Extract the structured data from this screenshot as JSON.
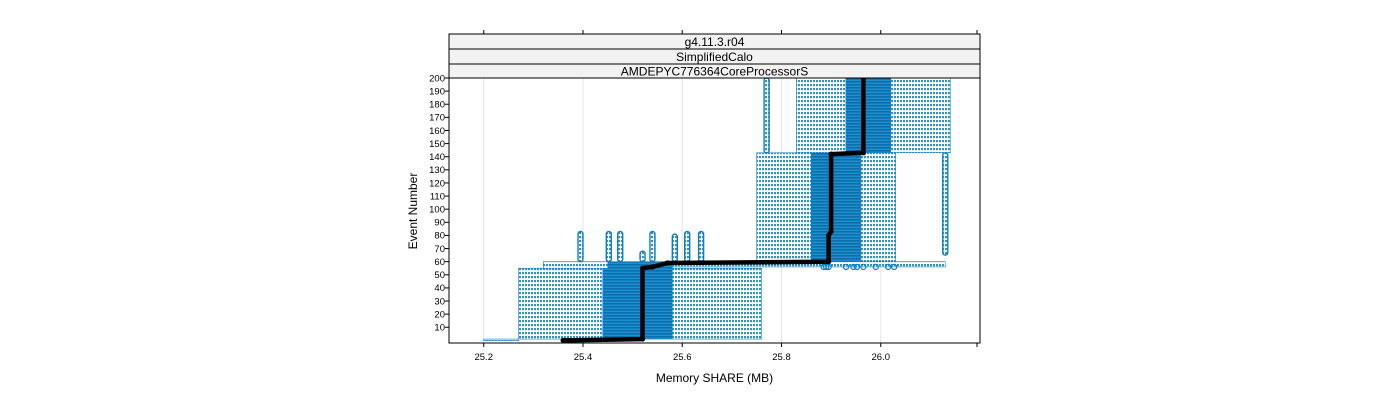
{
  "chart_data": {
    "type": "scatter",
    "panel_strips": [
      "g4.11.3.r04",
      "SimplifiedCalo",
      "AMDEPYC776364CoreProcessorS"
    ],
    "xlabel": "Memory SHARE (MB)",
    "ylabel": "Event Number",
    "xlim": [
      25.13,
      26.2
    ],
    "ylim": [
      -2,
      200
    ],
    "x_ticks": [
      25.2,
      25.4,
      25.6,
      25.8,
      26.0
    ],
    "x_tick_labels": [
      "25.2",
      "25.4",
      "25.6",
      "25.8",
      "26.0"
    ],
    "y_ticks": [
      10,
      20,
      30,
      40,
      50,
      60,
      70,
      80,
      90,
      100,
      110,
      120,
      130,
      140,
      150,
      160,
      170,
      180,
      190,
      200
    ],
    "y_tick_labels": [
      "10",
      "20",
      "30",
      "40",
      "50",
      "60",
      "70",
      "80",
      "90",
      "100",
      "110",
      "120",
      "130",
      "140",
      "150",
      "160",
      "170",
      "180",
      "190",
      "200"
    ],
    "grid": true,
    "colors": {
      "points": "#0f7ec0",
      "median": "#000000",
      "strip_bg": "#f2f2f2",
      "grid": "#e6e6e6"
    },
    "bands": [
      {
        "x": [
          25.2,
          25.27
        ],
        "y": [
          0,
          1
        ],
        "density": "light"
      },
      {
        "x": [
          25.27,
          25.44
        ],
        "y": [
          1,
          55
        ],
        "density": "light"
      },
      {
        "x": [
          25.44,
          25.58
        ],
        "y": [
          1,
          55
        ],
        "density": "dense"
      },
      {
        "x": [
          25.58,
          25.76
        ],
        "y": [
          1,
          55
        ],
        "density": "light"
      },
      {
        "x": [
          25.32,
          25.45
        ],
        "y": [
          55,
          60
        ],
        "density": "light"
      },
      {
        "x": [
          25.45,
          25.58
        ],
        "y": [
          55,
          60
        ],
        "density": "dense"
      },
      {
        "x": [
          25.58,
          26.13
        ],
        "y": [
          56,
          60
        ],
        "density": "light"
      },
      {
        "x": [
          25.75,
          25.86
        ],
        "y": [
          60,
          143
        ],
        "density": "light"
      },
      {
        "x": [
          25.86,
          25.96
        ],
        "y": [
          60,
          143
        ],
        "density": "dense"
      },
      {
        "x": [
          25.96,
          26.03
        ],
        "y": [
          60,
          143
        ],
        "density": "light"
      },
      {
        "x": [
          25.83,
          25.93
        ],
        "y": [
          143,
          200
        ],
        "density": "light"
      },
      {
        "x": [
          25.93,
          26.02
        ],
        "y": [
          143,
          200
        ],
        "density": "dense"
      },
      {
        "x": [
          26.02,
          26.14
        ],
        "y": [
          143,
          200
        ],
        "density": "light"
      }
    ],
    "spikes": [
      {
        "x": 25.395,
        "y": [
          60,
          83
        ]
      },
      {
        "x": 25.452,
        "y": [
          60,
          83
        ]
      },
      {
        "x": 25.475,
        "y": [
          60,
          83
        ]
      },
      {
        "x": 25.52,
        "y": [
          60,
          68
        ]
      },
      {
        "x": 25.54,
        "y": [
          60,
          83
        ]
      },
      {
        "x": 25.585,
        "y": [
          60,
          81
        ]
      },
      {
        "x": 25.61,
        "y": [
          60,
          83
        ]
      },
      {
        "x": 25.638,
        "y": [
          60,
          83
        ]
      },
      {
        "x": 25.77,
        "y": [
          143,
          200
        ]
      },
      {
        "x": 26.13,
        "y": [
          65,
          143
        ]
      }
    ],
    "outliers": [
      {
        "x": 25.885,
        "y": 56
      },
      {
        "x": 25.89,
        "y": 56
      },
      {
        "x": 25.895,
        "y": 56
      },
      {
        "x": 25.93,
        "y": 56
      },
      {
        "x": 25.945,
        "y": 56
      },
      {
        "x": 25.952,
        "y": 56
      },
      {
        "x": 25.965,
        "y": 56
      },
      {
        "x": 25.99,
        "y": 56
      },
      {
        "x": 26.015,
        "y": 56
      },
      {
        "x": 26.027,
        "y": 56
      }
    ],
    "median_path": [
      {
        "x": 25.36,
        "y": 0
      },
      {
        "x": 25.52,
        "y": 1
      },
      {
        "x": 25.52,
        "y": 55
      },
      {
        "x": 25.54,
        "y": 56
      },
      {
        "x": 25.57,
        "y": 59
      },
      {
        "x": 25.895,
        "y": 60
      },
      {
        "x": 25.895,
        "y": 80
      },
      {
        "x": 25.9,
        "y": 83
      },
      {
        "x": 25.9,
        "y": 142
      },
      {
        "x": 25.965,
        "y": 143
      },
      {
        "x": 25.965,
        "y": 200
      }
    ]
  }
}
